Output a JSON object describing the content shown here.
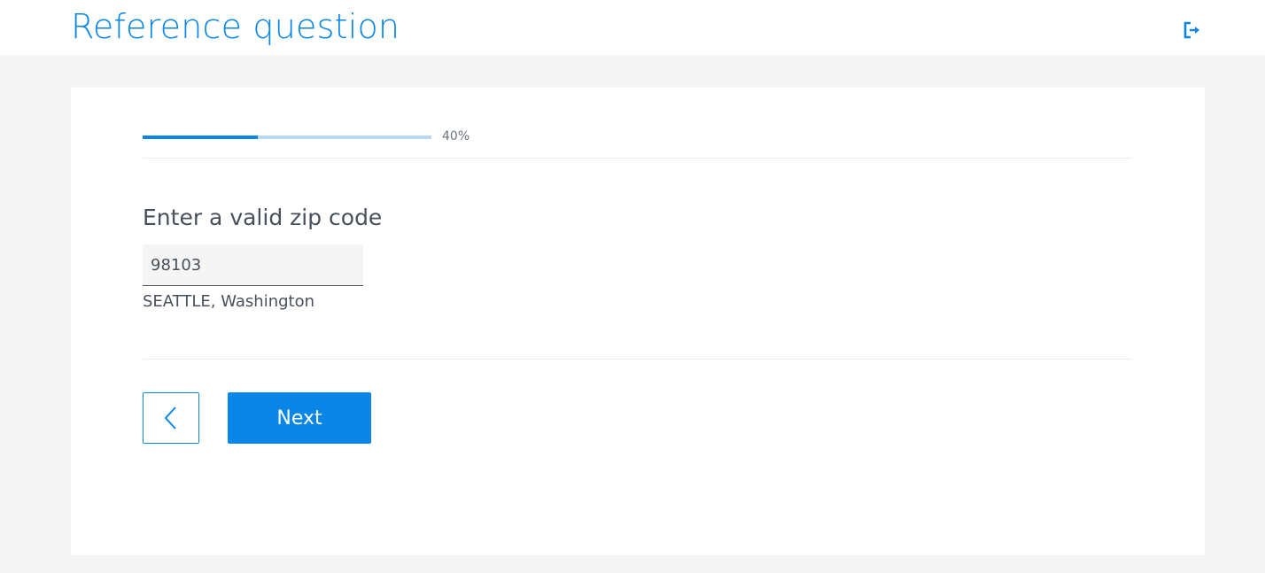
{
  "header": {
    "title": "Reference question",
    "exit_icon": "exit-icon"
  },
  "progress": {
    "percent": 40,
    "label": "40%"
  },
  "question": {
    "label": "Enter a valid zip code",
    "value": "98103",
    "location": "SEATTLE, Washington"
  },
  "buttons": {
    "back_icon": "chevron-left-icon",
    "next_label": "Next"
  },
  "colors": {
    "accent": "#0a86e9",
    "progress_track": "#b7d9f7",
    "text": "#48515b"
  }
}
